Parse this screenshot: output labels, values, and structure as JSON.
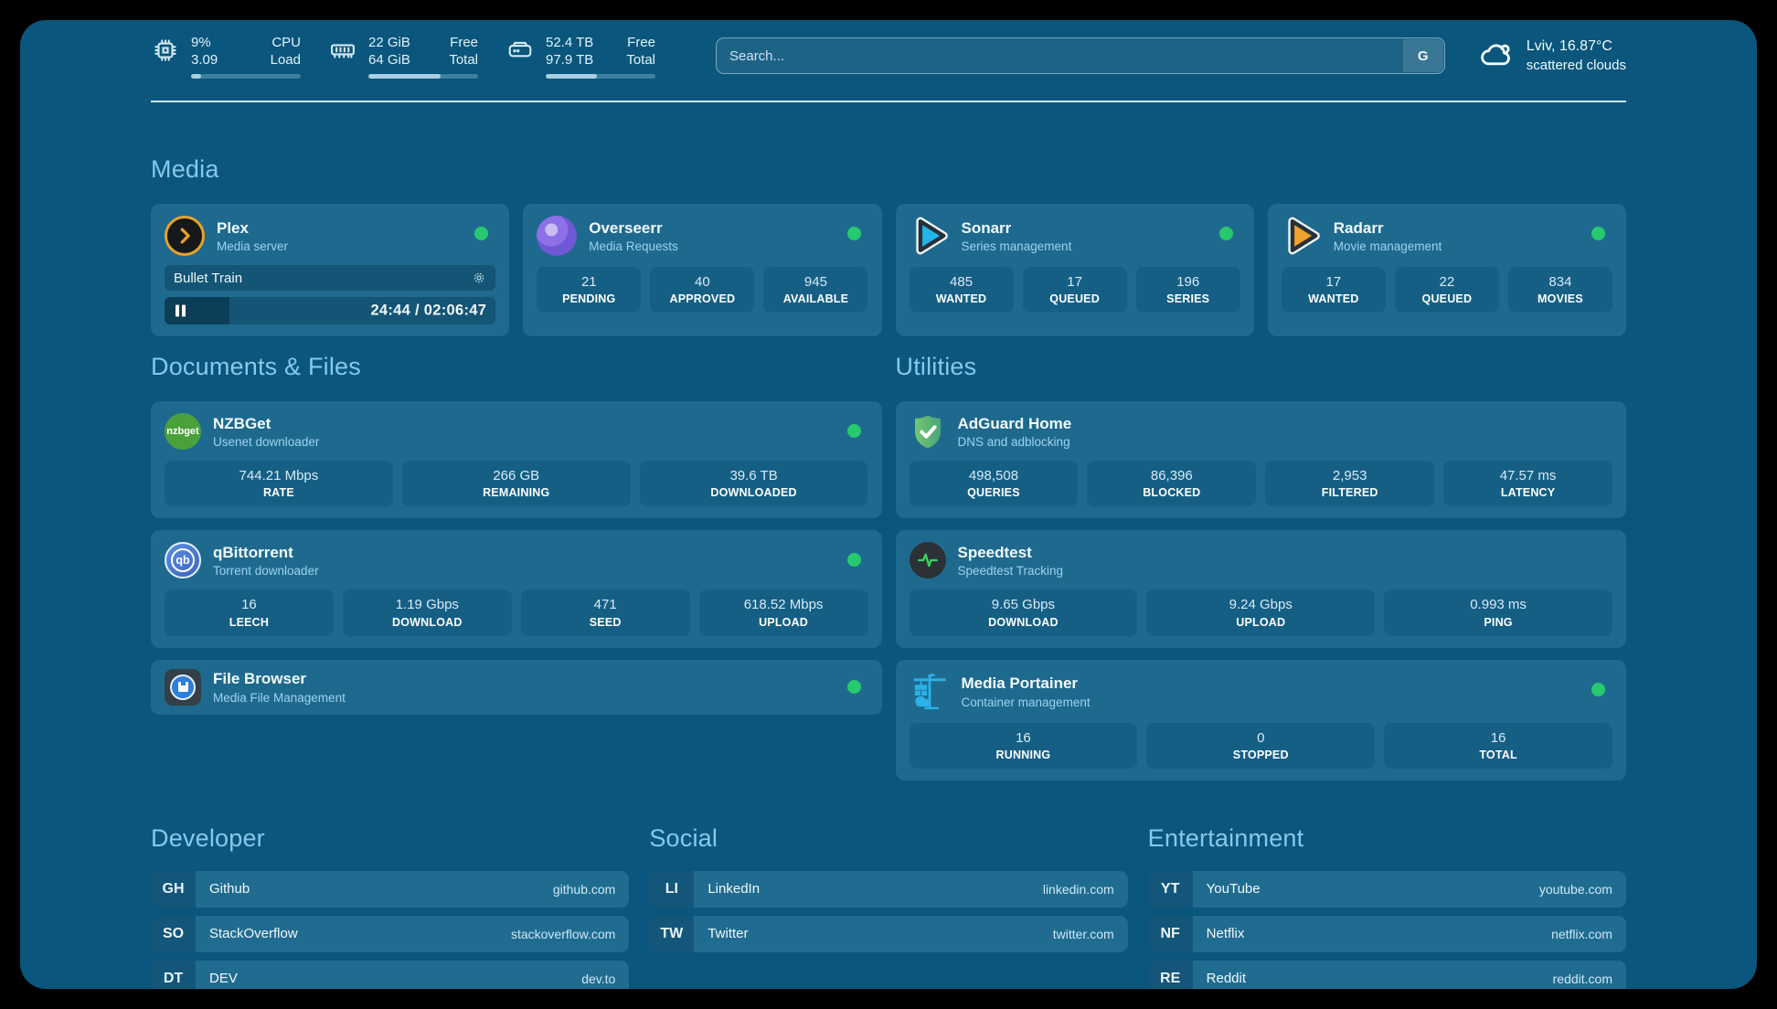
{
  "header": {
    "system": {
      "cpu": {
        "value_top": "9%",
        "value_bottom": "3.09",
        "label_top": "CPU",
        "label_bottom": "Load",
        "bar_pct": 9
      },
      "ram": {
        "value_top": "22 GiB",
        "value_bottom": "64 GiB",
        "label_top": "Free",
        "label_bottom": "Total",
        "bar_pct": 66
      },
      "disk": {
        "value_top": "52.4 TB",
        "value_bottom": "97.9 TB",
        "label_top": "Free",
        "label_bottom": "Total",
        "bar_pct": 47
      }
    },
    "search": {
      "placeholder": "Search...",
      "engine_label": "G"
    },
    "weather": {
      "line1": "Lviv, 16.87°C",
      "line2": "scattered clouds"
    }
  },
  "media": {
    "section_title": "Media",
    "plex": {
      "name": "Plex",
      "desc": "Media server",
      "now_playing": "Bullet Train",
      "time": "24:44 / 02:06:47",
      "progress_pct": 19.5
    },
    "overseerr": {
      "name": "Overseerr",
      "desc": "Media Requests",
      "stats": [
        {
          "value": "21",
          "label": "PENDING"
        },
        {
          "value": "40",
          "label": "APPROVED"
        },
        {
          "value": "945",
          "label": "AVAILABLE"
        }
      ]
    },
    "sonarr": {
      "name": "Sonarr",
      "desc": "Series management",
      "stats": [
        {
          "value": "485",
          "label": "WANTED"
        },
        {
          "value": "17",
          "label": "QUEUED"
        },
        {
          "value": "196",
          "label": "SERIES"
        }
      ]
    },
    "radarr": {
      "name": "Radarr",
      "desc": "Movie management",
      "stats": [
        {
          "value": "17",
          "label": "WANTED"
        },
        {
          "value": "22",
          "label": "QUEUED"
        },
        {
          "value": "834",
          "label": "MOVIES"
        }
      ]
    }
  },
  "documents": {
    "section_title": "Documents & Files",
    "nzbget": {
      "name": "NZBGet",
      "desc": "Usenet downloader",
      "icon_text": "nzbget",
      "stats": [
        {
          "value": "744.21 Mbps",
          "label": "RATE"
        },
        {
          "value": "266 GB",
          "label": "REMAINING"
        },
        {
          "value": "39.6 TB",
          "label": "DOWNLOADED"
        }
      ]
    },
    "qbittorrent": {
      "name": "qBittorrent",
      "desc": "Torrent downloader",
      "icon_text": "qb",
      "stats": [
        {
          "value": "16",
          "label": "LEECH"
        },
        {
          "value": "1.19 Gbps",
          "label": "DOWNLOAD"
        },
        {
          "value": "471",
          "label": "SEED"
        },
        {
          "value": "618.52 Mbps",
          "label": "UPLOAD"
        }
      ]
    },
    "filebrowser": {
      "name": "File Browser",
      "desc": "Media File Management"
    }
  },
  "utilities": {
    "section_title": "Utilities",
    "adguard": {
      "name": "AdGuard Home",
      "desc": "DNS and adblocking",
      "stats": [
        {
          "value": "498,508",
          "label": "QUERIES"
        },
        {
          "value": "86,396",
          "label": "BLOCKED"
        },
        {
          "value": "2,953",
          "label": "FILTERED"
        },
        {
          "value": "47.57 ms",
          "label": "LATENCY"
        }
      ]
    },
    "speedtest": {
      "name": "Speedtest",
      "desc": "Speedtest Tracking",
      "stats": [
        {
          "value": "9.65 Gbps",
          "label": "DOWNLOAD"
        },
        {
          "value": "9.24 Gbps",
          "label": "UPLOAD"
        },
        {
          "value": "0.993 ms",
          "label": "PING"
        }
      ]
    },
    "portainer": {
      "name": "Media Portainer",
      "desc": "Container management",
      "stats": [
        {
          "value": "16",
          "label": "RUNNING"
        },
        {
          "value": "0",
          "label": "STOPPED"
        },
        {
          "value": "16",
          "label": "TOTAL"
        }
      ]
    }
  },
  "bookmarks": {
    "developer": {
      "section_title": "Developer",
      "items": [
        {
          "abbr": "GH",
          "name": "Github",
          "url": "github.com"
        },
        {
          "abbr": "SO",
          "name": "StackOverflow",
          "url": "stackoverflow.com"
        },
        {
          "abbr": "DT",
          "name": "DEV",
          "url": "dev.to"
        }
      ]
    },
    "social": {
      "section_title": "Social",
      "items": [
        {
          "abbr": "LI",
          "name": "LinkedIn",
          "url": "linkedin.com"
        },
        {
          "abbr": "TW",
          "name": "Twitter",
          "url": "twitter.com"
        }
      ]
    },
    "entertainment": {
      "section_title": "Entertainment",
      "items": [
        {
          "abbr": "YT",
          "name": "YouTube",
          "url": "youtube.com"
        },
        {
          "abbr": "NF",
          "name": "Netflix",
          "url": "netflix.com"
        },
        {
          "abbr": "RE",
          "name": "Reddit",
          "url": "reddit.com"
        }
      ]
    }
  },
  "colors": {
    "page_bg": "#0a567c",
    "card_bg": "#1e6a8e",
    "stat_bg": "#155f85",
    "heading": "#87c8eb",
    "status_online": "#27c96e",
    "speedtest_green": "#38d45f",
    "plex_amber": "#e7a22b",
    "sonarr_cyan": "#23b5e8",
    "radarr_orange": "#f0a12e",
    "portainer_blue": "#2bb1e8"
  }
}
